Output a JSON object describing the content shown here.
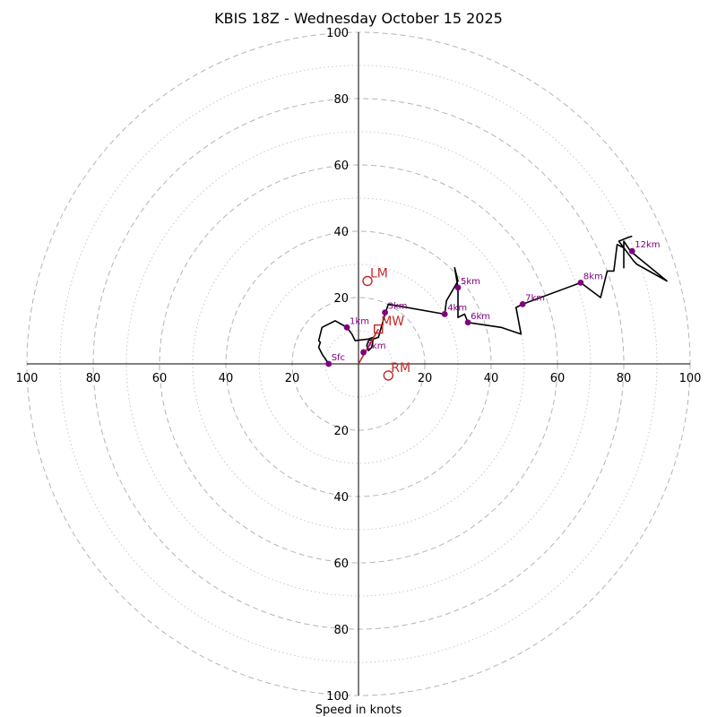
{
  "chart_data": {
    "type": "hodograph",
    "title": "KBIS 18Z - Wednesday October 15 2025",
    "xlabel": "Speed in knots",
    "ring_ticks": [
      20,
      40,
      60,
      80,
      100
    ],
    "ring_max": 100,
    "minor_rings": [
      10,
      30,
      50,
      70,
      90
    ],
    "grid": true,
    "trace_color": "#000000",
    "marker_color": "#800080",
    "motion_color": "#c62828",
    "trace": [
      {
        "u": -9,
        "v": 0
      },
      {
        "u": -11,
        "v": 3
      },
      {
        "u": -12,
        "v": 5
      },
      {
        "u": -11.5,
        "v": 6.5
      },
      {
        "u": -12,
        "v": 7
      },
      {
        "u": -11,
        "v": 11
      },
      {
        "u": -7,
        "v": 13
      },
      {
        "u": -3.5,
        "v": 11
      },
      {
        "u": -2,
        "v": 9
      },
      {
        "u": -1,
        "v": 7
      },
      {
        "u": 3,
        "v": 7.5
      },
      {
        "u": 4.5,
        "v": 8
      },
      {
        "u": 4,
        "v": 5
      },
      {
        "u": 3,
        "v": 4
      },
      {
        "u": 2.5,
        "v": 5.5
      },
      {
        "u": 3,
        "v": 7
      },
      {
        "u": 6,
        "v": 8
      },
      {
        "u": 8,
        "v": 15
      },
      {
        "u": 9,
        "v": 18
      },
      {
        "u": 26,
        "v": 15
      },
      {
        "u": 26.5,
        "v": 19
      },
      {
        "u": 30,
        "v": 25
      },
      {
        "u": 29,
        "v": 29
      },
      {
        "u": 30,
        "v": 23
      },
      {
        "u": 30,
        "v": 14
      },
      {
        "u": 32,
        "v": 15
      },
      {
        "u": 33,
        "v": 12.5
      },
      {
        "u": 43,
        "v": 11
      },
      {
        "u": 49,
        "v": 9
      },
      {
        "u": 47.5,
        "v": 17
      },
      {
        "u": 49.5,
        "v": 18
      },
      {
        "u": 67,
        "v": 24.5
      },
      {
        "u": 73,
        "v": 20
      },
      {
        "u": 75,
        "v": 28
      },
      {
        "u": 77,
        "v": 28
      },
      {
        "u": 78,
        "v": 36
      },
      {
        "u": 80,
        "v": 35
      },
      {
        "u": 80,
        "v": 29
      },
      {
        "u": 80,
        "v": 37
      },
      {
        "u": 82,
        "v": 34
      },
      {
        "u": 93,
        "v": 25
      },
      {
        "u": 84,
        "v": 30
      },
      {
        "u": 83,
        "v": 31
      },
      {
        "u": 78.5,
        "v": 37
      },
      {
        "u": 81,
        "v": 38
      },
      {
        "u": 82.5,
        "v": 38.5
      }
    ],
    "height_markers": [
      {
        "label": "Sfc",
        "u": -9,
        "v": 0
      },
      {
        "label": "1km",
        "u": -3.5,
        "v": 11
      },
      {
        "label": "2km",
        "u": 1.5,
        "v": 3.5
      },
      {
        "label": "3km",
        "u": 8,
        "v": 15.5
      },
      {
        "label": "4km",
        "u": 26,
        "v": 15
      },
      {
        "label": "5km",
        "u": 30,
        "v": 23
      },
      {
        "label": "6km",
        "u": 33,
        "v": 12.5
      },
      {
        "label": "7km",
        "u": 49.5,
        "v": 18
      },
      {
        "label": "8km",
        "u": 67,
        "v": 24.5
      },
      {
        "label": "12km",
        "u": 82.5,
        "v": 34
      }
    ],
    "storm_motions": [
      {
        "label": "LM",
        "u": 2.7,
        "v": 25,
        "symbol": "circle"
      },
      {
        "label": "MW",
        "u": 6,
        "v": 10.5,
        "symbol": "square"
      },
      {
        "label": "RM",
        "u": 9,
        "v": -3.5,
        "symbol": "circle"
      }
    ],
    "shear_vector": {
      "from": {
        "u": 0,
        "v": 0
      },
      "to": {
        "u": 6,
        "v": 10.5
      }
    }
  }
}
